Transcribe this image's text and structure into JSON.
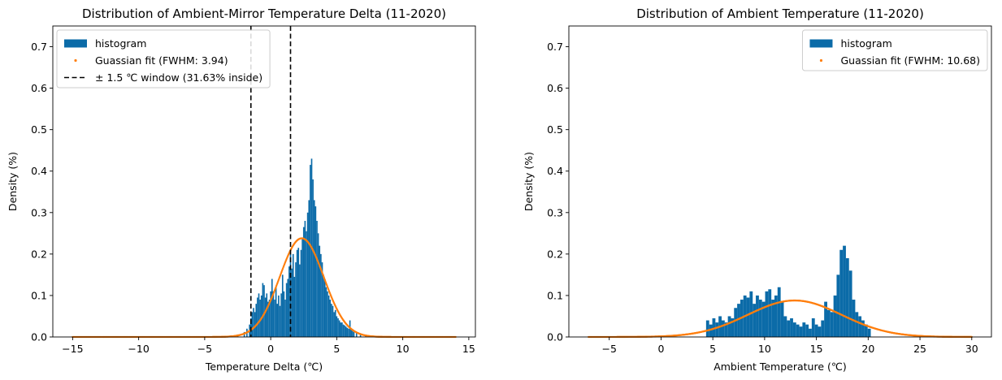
{
  "colors": {
    "hist": "#0b6ba8",
    "fit": "#ff7f0e",
    "window": "#000000"
  },
  "chart_data": [
    {
      "type": "bar",
      "title": "Distribution of Ambient-Mirror Temperature Delta (11-2020)",
      "xlabel": "Temperature Delta (℃)",
      "ylabel": "Density (%)",
      "xlim": [
        -16.5,
        15.5
      ],
      "ylim": [
        0,
        0.75
      ],
      "xticks": [
        -15,
        -10,
        -5,
        0,
        5,
        10,
        15
      ],
      "xtick_labels": [
        "−15",
        "−10",
        "−5",
        "0",
        "5",
        "10",
        "15"
      ],
      "yticks": [
        0.0,
        0.1,
        0.2,
        0.3,
        0.4,
        0.5,
        0.6,
        0.7
      ],
      "ytick_labels": [
        "0.0",
        "0.1",
        "0.2",
        "0.3",
        "0.4",
        "0.5",
        "0.6",
        "0.7"
      ],
      "legend": {
        "placement": "upper-left",
        "entries": [
          {
            "kind": "bar",
            "label": "histogram"
          },
          {
            "kind": "dot",
            "label": "Guassian fit (FWHM: 3.94)"
          },
          {
            "kind": "dash",
            "label": "± 1.5 ℃ window (31.63% inside)"
          }
        ]
      },
      "histogram": {
        "bin_width": 0.1,
        "bins": [
          {
            "x": -3.5,
            "y": 0.002
          },
          {
            "x": -3.0,
            "y": 0.004
          },
          {
            "x": -2.5,
            "y": 0.006
          },
          {
            "x": -2.0,
            "y": 0.012
          },
          {
            "x": -1.8,
            "y": 0.02
          },
          {
            "x": -1.6,
            "y": 0.03
          },
          {
            "x": -1.5,
            "y": 0.045
          },
          {
            "x": -1.4,
            "y": 0.06
          },
          {
            "x": -1.3,
            "y": 0.07
          },
          {
            "x": -1.2,
            "y": 0.06
          },
          {
            "x": -1.1,
            "y": 0.08
          },
          {
            "x": -1.0,
            "y": 0.095
          },
          {
            "x": -0.9,
            "y": 0.105
          },
          {
            "x": -0.8,
            "y": 0.09
          },
          {
            "x": -0.7,
            "y": 0.1
          },
          {
            "x": -0.6,
            "y": 0.13
          },
          {
            "x": -0.5,
            "y": 0.125
          },
          {
            "x": -0.4,
            "y": 0.095
          },
          {
            "x": -0.3,
            "y": 0.105
          },
          {
            "x": -0.2,
            "y": 0.085
          },
          {
            "x": -0.1,
            "y": 0.09
          },
          {
            "x": 0.0,
            "y": 0.11
          },
          {
            "x": 0.1,
            "y": 0.14
          },
          {
            "x": 0.2,
            "y": 0.11
          },
          {
            "x": 0.3,
            "y": 0.09
          },
          {
            "x": 0.4,
            "y": 0.12
          },
          {
            "x": 0.5,
            "y": 0.08
          },
          {
            "x": 0.6,
            "y": 0.1
          },
          {
            "x": 0.7,
            "y": 0.075
          },
          {
            "x": 0.8,
            "y": 0.105
          },
          {
            "x": 0.9,
            "y": 0.15
          },
          {
            "x": 1.0,
            "y": 0.11
          },
          {
            "x": 1.1,
            "y": 0.09
          },
          {
            "x": 1.2,
            "y": 0.13
          },
          {
            "x": 1.3,
            "y": 0.14
          },
          {
            "x": 1.4,
            "y": 0.17
          },
          {
            "x": 1.5,
            "y": 0.2
          },
          {
            "x": 1.6,
            "y": 0.165
          },
          {
            "x": 1.7,
            "y": 0.2
          },
          {
            "x": 1.8,
            "y": 0.145
          },
          {
            "x": 1.9,
            "y": 0.18
          },
          {
            "x": 2.0,
            "y": 0.21
          },
          {
            "x": 2.1,
            "y": 0.215
          },
          {
            "x": 2.2,
            "y": 0.175
          },
          {
            "x": 2.3,
            "y": 0.21
          },
          {
            "x": 2.4,
            "y": 0.24
          },
          {
            "x": 2.5,
            "y": 0.265
          },
          {
            "x": 2.6,
            "y": 0.28
          },
          {
            "x": 2.7,
            "y": 0.255
          },
          {
            "x": 2.8,
            "y": 0.3
          },
          {
            "x": 2.9,
            "y": 0.33
          },
          {
            "x": 3.0,
            "y": 0.415
          },
          {
            "x": 3.1,
            "y": 0.43
          },
          {
            "x": 3.2,
            "y": 0.38
          },
          {
            "x": 3.3,
            "y": 0.33
          },
          {
            "x": 3.4,
            "y": 0.315
          },
          {
            "x": 3.5,
            "y": 0.28
          },
          {
            "x": 3.6,
            "y": 0.25
          },
          {
            "x": 3.7,
            "y": 0.22
          },
          {
            "x": 3.8,
            "y": 0.2
          },
          {
            "x": 3.9,
            "y": 0.18
          },
          {
            "x": 4.0,
            "y": 0.15
          },
          {
            "x": 4.1,
            "y": 0.14
          },
          {
            "x": 4.2,
            "y": 0.12
          },
          {
            "x": 4.3,
            "y": 0.11
          },
          {
            "x": 4.4,
            "y": 0.1
          },
          {
            "x": 4.5,
            "y": 0.09
          },
          {
            "x": 4.6,
            "y": 0.08
          },
          {
            "x": 4.7,
            "y": 0.075
          },
          {
            "x": 4.8,
            "y": 0.06
          },
          {
            "x": 4.9,
            "y": 0.065
          },
          {
            "x": 5.0,
            "y": 0.05
          },
          {
            "x": 5.1,
            "y": 0.045
          },
          {
            "x": 5.2,
            "y": 0.04
          },
          {
            "x": 5.3,
            "y": 0.035
          },
          {
            "x": 5.4,
            "y": 0.035
          },
          {
            "x": 5.5,
            "y": 0.03
          },
          {
            "x": 5.6,
            "y": 0.028
          },
          {
            "x": 5.7,
            "y": 0.025
          },
          {
            "x": 5.8,
            "y": 0.022
          },
          {
            "x": 5.9,
            "y": 0.02
          },
          {
            "x": 6.0,
            "y": 0.04
          },
          {
            "x": 6.1,
            "y": 0.018
          },
          {
            "x": 6.2,
            "y": 0.015
          },
          {
            "x": 6.3,
            "y": 0.012
          },
          {
            "x": 6.5,
            "y": 0.01
          },
          {
            "x": 6.8,
            "y": 0.007
          },
          {
            "x": 7.2,
            "y": 0.004
          },
          {
            "x": 7.8,
            "y": 0.002
          }
        ]
      },
      "gaussian_fit": {
        "mu": 2.35,
        "sigma": 1.673,
        "amplitude": 0.238,
        "x_range": [
          -15,
          14
        ]
      },
      "window": {
        "lower": -1.5,
        "upper": 1.5
      }
    },
    {
      "type": "bar",
      "title": "Distribution of Ambient Temperature (11-2020)",
      "xlabel": "Ambient Temperature (℃)",
      "ylabel": "Density (%)",
      "xlim": [
        -8.9,
        31.9
      ],
      "ylim": [
        0,
        0.75
      ],
      "xticks": [
        -5,
        0,
        5,
        10,
        15,
        20,
        25,
        30
      ],
      "xtick_labels": [
        "−5",
        "0",
        "5",
        "10",
        "15",
        "20",
        "25",
        "30"
      ],
      "yticks": [
        0.0,
        0.1,
        0.2,
        0.3,
        0.4,
        0.5,
        0.6,
        0.7
      ],
      "ytick_labels": [
        "0.0",
        "0.1",
        "0.2",
        "0.3",
        "0.4",
        "0.5",
        "0.6",
        "0.7"
      ],
      "legend": {
        "placement": "upper-right",
        "entries": [
          {
            "kind": "bar",
            "label": "histogram"
          },
          {
            "kind": "dot",
            "label": "Guassian fit (FWHM: 10.68)"
          }
        ]
      },
      "histogram": {
        "bin_width": 0.3,
        "bins": [
          {
            "x": 4.5,
            "y": 0.04
          },
          {
            "x": 4.8,
            "y": 0.03
          },
          {
            "x": 5.1,
            "y": 0.045
          },
          {
            "x": 5.4,
            "y": 0.035
          },
          {
            "x": 5.7,
            "y": 0.05
          },
          {
            "x": 6.0,
            "y": 0.04
          },
          {
            "x": 6.3,
            "y": 0.035
          },
          {
            "x": 6.6,
            "y": 0.05
          },
          {
            "x": 6.9,
            "y": 0.045
          },
          {
            "x": 7.2,
            "y": 0.07
          },
          {
            "x": 7.5,
            "y": 0.08
          },
          {
            "x": 7.8,
            "y": 0.09
          },
          {
            "x": 8.1,
            "y": 0.1
          },
          {
            "x": 8.4,
            "y": 0.095
          },
          {
            "x": 8.7,
            "y": 0.11
          },
          {
            "x": 9.0,
            "y": 0.08
          },
          {
            "x": 9.3,
            "y": 0.1
          },
          {
            "x": 9.6,
            "y": 0.09
          },
          {
            "x": 9.9,
            "y": 0.085
          },
          {
            "x": 10.2,
            "y": 0.11
          },
          {
            "x": 10.5,
            "y": 0.115
          },
          {
            "x": 10.8,
            "y": 0.09
          },
          {
            "x": 11.1,
            "y": 0.1
          },
          {
            "x": 11.4,
            "y": 0.12
          },
          {
            "x": 11.7,
            "y": 0.085
          },
          {
            "x": 12.0,
            "y": 0.05
          },
          {
            "x": 12.3,
            "y": 0.04
          },
          {
            "x": 12.6,
            "y": 0.045
          },
          {
            "x": 12.9,
            "y": 0.035
          },
          {
            "x": 13.2,
            "y": 0.03
          },
          {
            "x": 13.5,
            "y": 0.025
          },
          {
            "x": 13.8,
            "y": 0.035
          },
          {
            "x": 14.1,
            "y": 0.03
          },
          {
            "x": 14.4,
            "y": 0.02
          },
          {
            "x": 14.7,
            "y": 0.045
          },
          {
            "x": 15.0,
            "y": 0.03
          },
          {
            "x": 15.3,
            "y": 0.025
          },
          {
            "x": 15.6,
            "y": 0.04
          },
          {
            "x": 15.9,
            "y": 0.085
          },
          {
            "x": 16.2,
            "y": 0.065
          },
          {
            "x": 16.5,
            "y": 0.06
          },
          {
            "x": 16.8,
            "y": 0.1
          },
          {
            "x": 17.1,
            "y": 0.15
          },
          {
            "x": 17.4,
            "y": 0.21
          },
          {
            "x": 17.7,
            "y": 0.22
          },
          {
            "x": 18.0,
            "y": 0.19
          },
          {
            "x": 18.3,
            "y": 0.16
          },
          {
            "x": 18.6,
            "y": 0.09
          },
          {
            "x": 18.9,
            "y": 0.06
          },
          {
            "x": 19.2,
            "y": 0.05
          },
          {
            "x": 19.5,
            "y": 0.04
          },
          {
            "x": 19.8,
            "y": 0.03
          },
          {
            "x": 20.1,
            "y": 0.02
          }
        ]
      },
      "gaussian_fit": {
        "mu": 12.9,
        "sigma": 4.535,
        "amplitude": 0.088,
        "x_range": [
          -7,
          30
        ]
      }
    }
  ]
}
